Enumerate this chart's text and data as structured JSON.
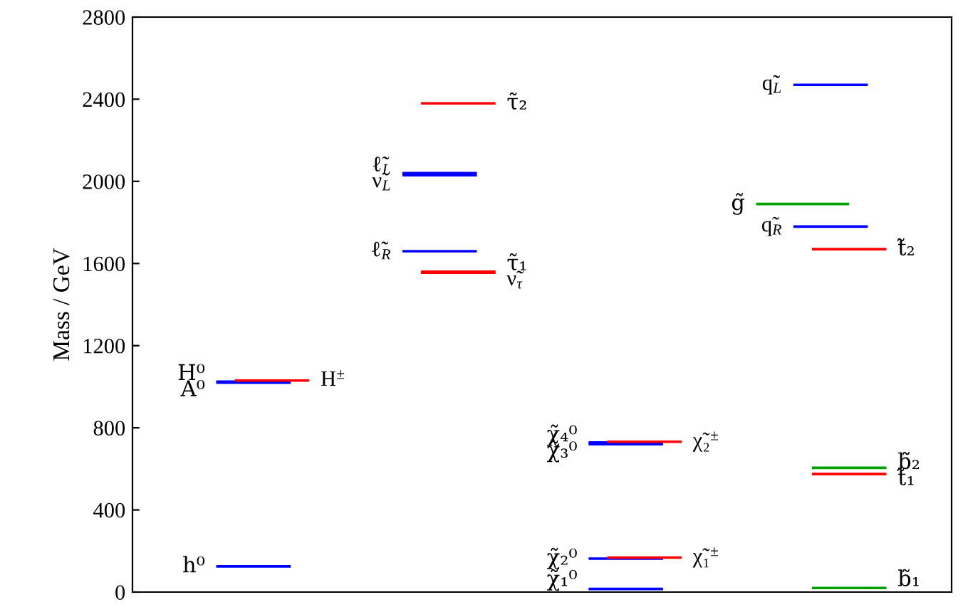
{
  "chart_data": {
    "type": "line",
    "ylabel": "Mass / GeV",
    "categories": [
      null,
      null,
      null,
      null,
      null,
      null,
      null,
      null,
      null,
      null,
      null,
      null,
      null,
      null,
      null,
      null,
      null,
      null,
      null,
      null,
      null,
      null,
      null,
      null,
      null,
      null,
      null,
      null,
      null,
      null,
      null,
      null,
      null,
      null,
      null,
      null,
      null,
      null,
      null,
      null,
      null,
      null,
      null,
      null
    ],
    "ylim": [
      0,
      2800
    ],
    "yticks": [
      0,
      400,
      800,
      1200,
      1600,
      2000,
      2400,
      2800
    ],
    "tick_labels": "y",
    "grid": false,
    "legend": false,
    "marker": "none",
    "line_style": "solid",
    "series": [
      {
        "name": "h⁰",
        "color": "#0000ff",
        "values": [
          null,
          null,
          null,
          null,
          125,
          125,
          125,
          125,
          125,
          null,
          null,
          null,
          null,
          null,
          null,
          null,
          null,
          null,
          null,
          null,
          null,
          null,
          null,
          null,
          null,
          null,
          null,
          null,
          null,
          null,
          null,
          null,
          null,
          null,
          null,
          null,
          null,
          null,
          null,
          null,
          null,
          null,
          null,
          null
        ]
      },
      {
        "name": "H⁰",
        "color": "#0000ff",
        "values": [
          null,
          null,
          null,
          null,
          1025,
          1025,
          1025,
          1025,
          1025,
          null,
          null,
          null,
          null,
          null,
          null,
          null,
          null,
          null,
          null,
          null,
          null,
          null,
          null,
          null,
          null,
          null,
          null,
          null,
          null,
          null,
          null,
          null,
          null,
          null,
          null,
          null,
          null,
          null,
          null,
          null,
          null,
          null,
          null,
          null
        ]
      },
      {
        "name": "A⁰",
        "color": "#0000ff",
        "values": [
          null,
          null,
          null,
          null,
          1020,
          1020,
          1020,
          1020,
          1020,
          null,
          null,
          null,
          null,
          null,
          null,
          null,
          null,
          null,
          null,
          null,
          null,
          null,
          null,
          null,
          null,
          null,
          null,
          null,
          null,
          null,
          null,
          null,
          null,
          null,
          null,
          null,
          null,
          null,
          null,
          null,
          null,
          null,
          null,
          null
        ]
      },
      {
        "name": "H$^{±}$",
        "color": "#ff0000",
        "values": [
          null,
          null,
          null,
          null,
          null,
          1030,
          1030,
          1030,
          1030,
          1030,
          null,
          null,
          null,
          null,
          null,
          null,
          null,
          null,
          null,
          null,
          null,
          null,
          null,
          null,
          null,
          null,
          null,
          null,
          null,
          null,
          null,
          null,
          null,
          null,
          null,
          null,
          null,
          null,
          null,
          null,
          null,
          null,
          null,
          null
        ]
      },
      {
        "name": "ℓ̃$_{L}$",
        "color": "#0000ff",
        "values": [
          null,
          null,
          null,
          null,
          null,
          null,
          null,
          null,
          null,
          null,
          null,
          null,
          null,
          null,
          2040,
          2040,
          2040,
          2040,
          2040,
          null,
          null,
          null,
          null,
          null,
          null,
          null,
          null,
          null,
          null,
          null,
          null,
          null,
          null,
          null,
          null,
          null,
          null,
          null,
          null,
          null,
          null,
          null,
          null,
          null
        ]
      },
      {
        "name": "ν̃$_{L}$",
        "color": "#0000ff",
        "values": [
          null,
          null,
          null,
          null,
          null,
          null,
          null,
          null,
          null,
          null,
          null,
          null,
          null,
          null,
          2030,
          2030,
          2030,
          2030,
          2030,
          null,
          null,
          null,
          null,
          null,
          null,
          null,
          null,
          null,
          null,
          null,
          null,
          null,
          null,
          null,
          null,
          null,
          null,
          null,
          null,
          null,
          null,
          null,
          null,
          null
        ]
      },
      {
        "name": "ℓ̃$_{R}$",
        "color": "#0000ff",
        "values": [
          null,
          null,
          null,
          null,
          null,
          null,
          null,
          null,
          null,
          null,
          null,
          null,
          null,
          null,
          1660,
          1660,
          1660,
          1660,
          1660,
          null,
          null,
          null,
          null,
          null,
          null,
          null,
          null,
          null,
          null,
          null,
          null,
          null,
          null,
          null,
          null,
          null,
          null,
          null,
          null,
          null,
          null,
          null,
          null,
          null
        ]
      },
      {
        "name": "τ̃₂",
        "color": "#ff0000",
        "values": [
          null,
          null,
          null,
          null,
          null,
          null,
          null,
          null,
          null,
          null,
          null,
          null,
          null,
          null,
          null,
          2380,
          2380,
          2380,
          2380,
          2380,
          null,
          null,
          null,
          null,
          null,
          null,
          null,
          null,
          null,
          null,
          null,
          null,
          null,
          null,
          null,
          null,
          null,
          null,
          null,
          null,
          null,
          null,
          null,
          null
        ]
      },
      {
        "name": "τ̃₁",
        "color": "#ff0000",
        "values": [
          null,
          null,
          null,
          null,
          null,
          null,
          null,
          null,
          null,
          null,
          null,
          null,
          null,
          null,
          null,
          1560,
          1560,
          1560,
          1560,
          1560,
          null,
          null,
          null,
          null,
          null,
          null,
          null,
          null,
          null,
          null,
          null,
          null,
          null,
          null,
          null,
          null,
          null,
          null,
          null,
          null,
          null,
          null,
          null,
          null
        ]
      },
      {
        "name": "ν̃$_{τ}$",
        "color": "#ff0000",
        "values": [
          null,
          null,
          null,
          null,
          null,
          null,
          null,
          null,
          null,
          null,
          null,
          null,
          null,
          null,
          null,
          1555,
          1555,
          1555,
          1555,
          1555,
          null,
          null,
          null,
          null,
          null,
          null,
          null,
          null,
          null,
          null,
          null,
          null,
          null,
          null,
          null,
          null,
          null,
          null,
          null,
          null,
          null,
          null,
          null,
          null
        ]
      },
      {
        "name": "χ̃₁⁰",
        "color": "#0000ff",
        "values": [
          null,
          null,
          null,
          null,
          null,
          null,
          null,
          null,
          null,
          null,
          null,
          null,
          null,
          null,
          null,
          null,
          null,
          null,
          null,
          null,
          null,
          null,
          null,
          null,
          15,
          15,
          15,
          15,
          15,
          null,
          null,
          null,
          null,
          null,
          null,
          null,
          null,
          null,
          null,
          null,
          null,
          null,
          null,
          null
        ]
      },
      {
        "name": "χ̃₂⁰",
        "color": "#0000ff",
        "values": [
          null,
          null,
          null,
          null,
          null,
          null,
          null,
          null,
          null,
          null,
          null,
          null,
          null,
          null,
          null,
          null,
          null,
          null,
          null,
          null,
          null,
          null,
          null,
          null,
          163,
          163,
          163,
          163,
          163,
          null,
          null,
          null,
          null,
          null,
          null,
          null,
          null,
          null,
          null,
          null,
          null,
          null,
          null,
          null
        ]
      },
      {
        "name": "χ̃₃⁰",
        "color": "#0000ff",
        "values": [
          null,
          null,
          null,
          null,
          null,
          null,
          null,
          null,
          null,
          null,
          null,
          null,
          null,
          null,
          null,
          null,
          null,
          null,
          null,
          null,
          null,
          null,
          null,
          null,
          720,
          720,
          720,
          720,
          720,
          null,
          null,
          null,
          null,
          null,
          null,
          null,
          null,
          null,
          null,
          null,
          null,
          null,
          null,
          null
        ]
      },
      {
        "name": "χ̃₄⁰",
        "color": "#0000ff",
        "values": [
          null,
          null,
          null,
          null,
          null,
          null,
          null,
          null,
          null,
          null,
          null,
          null,
          null,
          null,
          null,
          null,
          null,
          null,
          null,
          null,
          null,
          null,
          null,
          null,
          728,
          728,
          728,
          728,
          728,
          null,
          null,
          null,
          null,
          null,
          null,
          null,
          null,
          null,
          null,
          null,
          null,
          null,
          null,
          null
        ]
      },
      {
        "name": "χ̃₁$^{±}$",
        "color": "#ff0000",
        "values": [
          null,
          null,
          null,
          null,
          null,
          null,
          null,
          null,
          null,
          null,
          null,
          null,
          null,
          null,
          null,
          null,
          null,
          null,
          null,
          null,
          null,
          null,
          null,
          null,
          null,
          168,
          168,
          168,
          168,
          168,
          null,
          null,
          null,
          null,
          null,
          null,
          null,
          null,
          null,
          null,
          null,
          null,
          null,
          null
        ]
      },
      {
        "name": "χ̃₂$^{±}$",
        "color": "#ff0000",
        "values": [
          null,
          null,
          null,
          null,
          null,
          null,
          null,
          null,
          null,
          null,
          null,
          null,
          null,
          null,
          null,
          null,
          null,
          null,
          null,
          null,
          null,
          null,
          null,
          null,
          null,
          732,
          732,
          732,
          732,
          732,
          null,
          null,
          null,
          null,
          null,
          null,
          null,
          null,
          null,
          null,
          null,
          null,
          null,
          null
        ]
      },
      {
        "name": "q̃$_{L}$",
        "color": "#0000ff",
        "values": [
          null,
          null,
          null,
          null,
          null,
          null,
          null,
          null,
          null,
          null,
          null,
          null,
          null,
          null,
          null,
          null,
          null,
          null,
          null,
          null,
          null,
          null,
          null,
          null,
          null,
          null,
          null,
          null,
          null,
          null,
          null,
          null,
          null,
          null,
          null,
          2470,
          2470,
          2470,
          2470,
          2470,
          null,
          null,
          null,
          null
        ]
      },
      {
        "name": "g̃",
        "color": "#00a000",
        "values": [
          null,
          null,
          null,
          null,
          null,
          null,
          null,
          null,
          null,
          null,
          null,
          null,
          null,
          null,
          null,
          null,
          null,
          null,
          null,
          null,
          null,
          null,
          null,
          null,
          null,
          null,
          null,
          null,
          null,
          null,
          null,
          null,
          null,
          1890,
          1890,
          1890,
          1890,
          1890,
          1890,
          null,
          null,
          null,
          null,
          null
        ]
      },
      {
        "name": "q̃$_{R}$",
        "color": "#0000ff",
        "values": [
          null,
          null,
          null,
          null,
          null,
          null,
          null,
          null,
          null,
          null,
          null,
          null,
          null,
          null,
          null,
          null,
          null,
          null,
          null,
          null,
          null,
          null,
          null,
          null,
          null,
          null,
          null,
          null,
          null,
          null,
          null,
          null,
          null,
          null,
          null,
          1780,
          1780,
          1780,
          1780,
          1780,
          null,
          null,
          null,
          null
        ]
      },
      {
        "name": "t̃₂",
        "color": "#ff0000",
        "values": [
          null,
          null,
          null,
          null,
          null,
          null,
          null,
          null,
          null,
          null,
          null,
          null,
          null,
          null,
          null,
          null,
          null,
          null,
          null,
          null,
          null,
          null,
          null,
          null,
          null,
          null,
          null,
          null,
          null,
          null,
          null,
          null,
          null,
          null,
          null,
          null,
          1670,
          1670,
          1670,
          1670,
          1670,
          null,
          null,
          null
        ]
      },
      {
        "name": "b̃₂",
        "color": "#00a000",
        "values": [
          null,
          null,
          null,
          null,
          null,
          null,
          null,
          null,
          null,
          null,
          null,
          null,
          null,
          null,
          null,
          null,
          null,
          null,
          null,
          null,
          null,
          null,
          null,
          null,
          null,
          null,
          null,
          null,
          null,
          null,
          null,
          null,
          null,
          null,
          null,
          null,
          605,
          605,
          605,
          605,
          605,
          null,
          null,
          null
        ]
      },
      {
        "name": "t̃₁",
        "color": "#ff0000",
        "values": [
          null,
          null,
          null,
          null,
          null,
          null,
          null,
          null,
          null,
          null,
          null,
          null,
          null,
          null,
          null,
          null,
          null,
          null,
          null,
          null,
          null,
          null,
          null,
          null,
          null,
          null,
          null,
          null,
          null,
          null,
          null,
          null,
          null,
          null,
          null,
          null,
          575,
          575,
          575,
          575,
          575,
          null,
          null,
          null
        ]
      },
      {
        "name": "b̃₁",
        "color": "#00a000",
        "values": [
          null,
          null,
          null,
          null,
          null,
          null,
          null,
          null,
          null,
          null,
          null,
          null,
          null,
          null,
          null,
          null,
          null,
          null,
          null,
          null,
          null,
          null,
          null,
          null,
          null,
          null,
          null,
          null,
          null,
          null,
          null,
          null,
          null,
          null,
          null,
          null,
          20,
          20,
          20,
          20,
          20,
          null,
          null,
          null
        ]
      }
    ]
  }
}
